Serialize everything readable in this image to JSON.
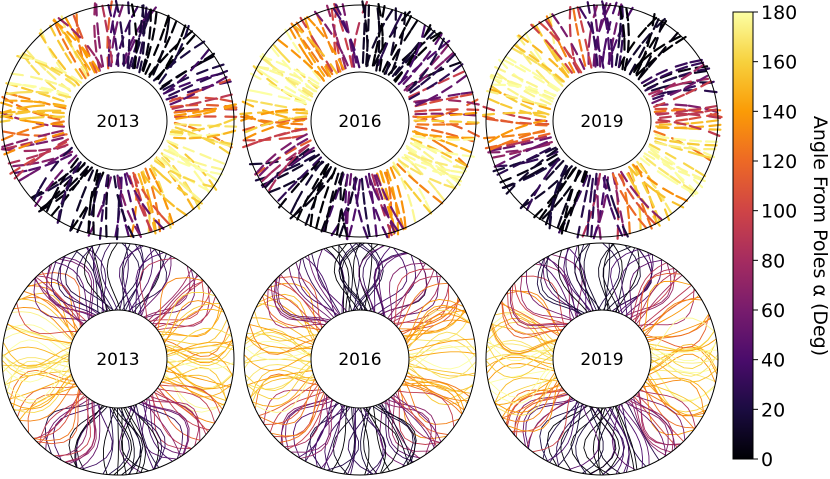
{
  "panels": [
    {
      "year": "2013",
      "row": "top"
    },
    {
      "year": "2016",
      "row": "top"
    },
    {
      "year": "2019",
      "row": "top"
    },
    {
      "year": "2013",
      "row": "bottom"
    },
    {
      "year": "2016",
      "row": "bottom"
    },
    {
      "year": "2019",
      "row": "bottom"
    }
  ],
  "colorbar": {
    "label": "Angle From Poles α (Deg)",
    "range": [
      0,
      180
    ],
    "ticks": [
      "0",
      "20",
      "40",
      "60",
      "80",
      "100",
      "120",
      "140",
      "160",
      "180"
    ],
    "colormap": "inferno",
    "stops": [
      "#000004",
      "#1b0c41",
      "#4a0c6b",
      "#781c6d",
      "#a52c60",
      "#cf4446",
      "#ed6925",
      "#fb9b06",
      "#f7d13d",
      "#fcffa4"
    ]
  }
}
